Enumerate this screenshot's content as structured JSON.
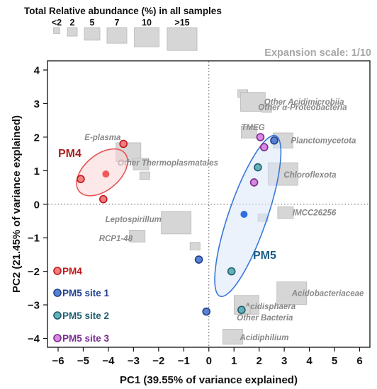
{
  "chart_data": {
    "type": "scatter",
    "xlabel": "PC1 (39.55% of variance explained)",
    "ylabel": "PC2 (21.45% of variance explained)",
    "xlim": [
      -6.3,
      6.3
    ],
    "ylim": [
      -4.3,
      4.3
    ],
    "xticks": [
      -6,
      -5,
      -4,
      -3,
      -2,
      -1,
      0,
      1,
      2,
      3,
      4,
      5,
      6
    ],
    "yticks": [
      -4,
      -3,
      -2,
      -1,
      0,
      1,
      2,
      3,
      4
    ],
    "reference_lines": {
      "x": 0,
      "y": 0,
      "style": "dotted"
    },
    "size_legend": {
      "title": "Total Relative abundance (%) in all samples",
      "labels": [
        "<2",
        "2",
        "5",
        "7",
        "10",
        ">15"
      ]
    },
    "expansion_scale": "Expansion scale: 1/10",
    "series": [
      {
        "name": "PM4",
        "color": "#c0151b",
        "fill": "#f08080",
        "points": [
          [
            -5.1,
            0.75
          ],
          [
            -4.2,
            0.15
          ],
          [
            -3.4,
            1.8
          ]
        ],
        "centroid": [
          -4.1,
          0.9
        ],
        "centroid_color": "#f05a5a"
      },
      {
        "name": "PM5 site 1",
        "color": "#1f3f8f",
        "fill": "#5a82d0",
        "points": [
          [
            -0.4,
            -1.65
          ],
          [
            -0.1,
            -3.2
          ],
          [
            2.6,
            1.9
          ]
        ]
      },
      {
        "name": "PM5 site 2",
        "color": "#1f5f6f",
        "fill": "#63b0b8",
        "points": [
          [
            0.9,
            -2.0
          ],
          [
            1.3,
            -3.15
          ],
          [
            1.95,
            1.1
          ]
        ]
      },
      {
        "name": "PM5 site 3",
        "color": "#7a2a8f",
        "fill": "#d88ae0",
        "points": [
          [
            2.05,
            2.0
          ],
          [
            2.2,
            1.7
          ],
          [
            1.8,
            0.65
          ]
        ]
      }
    ],
    "groups": [
      {
        "label": "PM4",
        "color": "#a81e1e",
        "ellipse_color": "#e85555",
        "ellipse_fill": "#f9d6d6"
      },
      {
        "label": "PM5",
        "color": "#1a5a86",
        "ellipse_color": "#3a78d8",
        "ellipse_fill": "#dbe8fa",
        "centroid": [
          1.4,
          -0.3
        ],
        "centroid_color": "#2f6fe0"
      }
    ],
    "taxa": [
      {
        "label": "E-plasma",
        "x": -3.2,
        "y": 1.55,
        "size": 10
      },
      {
        "label": "Other  Thermoplasmatales",
        "x": -2.7,
        "y": 1.2,
        "size": 5
      },
      {
        "label": "",
        "x": -2.55,
        "y": 0.85,
        "size": 2
      },
      {
        "label": "Leptospirillum",
        "x": -1.3,
        "y": -0.55,
        "size": 15
      },
      {
        "label": "RCP1-48",
        "x": -2.85,
        "y": -0.95,
        "size": 5
      },
      {
        "label": "",
        "x": -0.55,
        "y": -1.25,
        "size": 2
      },
      {
        "label": "",
        "x": 1.35,
        "y": 3.3,
        "size": 2
      },
      {
        "label": "Other  Acidimicrobiia",
        "x": 1.75,
        "y": 3.05,
        "size": 10
      },
      {
        "label": "Other  α-Proteobacteria",
        "x": 2.3,
        "y": 2.85,
        "size": 2
      },
      {
        "label": "TMEG",
        "x": 1.6,
        "y": 2.15,
        "size": 5
      },
      {
        "label": "Planctomycetota",
        "x": 2.95,
        "y": 1.9,
        "size": 7
      },
      {
        "label": "Chloroflexota",
        "x": 2.95,
        "y": 0.9,
        "size": 15
      },
      {
        "label": "IMCC26256",
        "x": 3.05,
        "y": -0.25,
        "size": 5
      },
      {
        "label": "",
        "x": 2.15,
        "y": -0.4,
        "size": 2
      },
      {
        "label": "Acidobacteriaceae",
        "x": 3.3,
        "y": -2.65,
        "size": 15
      },
      {
        "label": "Acidisphaera",
        "x": 1.5,
        "y": -3.0,
        "size": 10
      },
      {
        "label": "Other  Bacteria",
        "x": 1.45,
        "y": -3.15,
        "size": 2
      },
      {
        "label": "Acidiphilium",
        "x": 0.95,
        "y": -3.95,
        "size": 7
      }
    ],
    "legend": {
      "placement": "bottom-left"
    }
  }
}
